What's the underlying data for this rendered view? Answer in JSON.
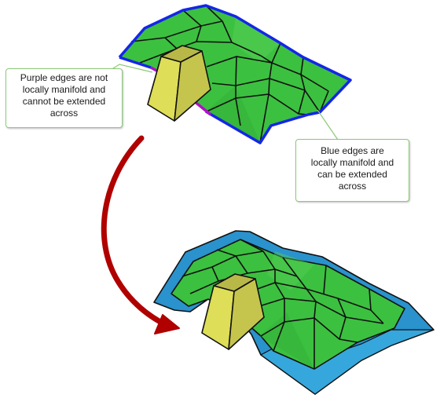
{
  "callouts": {
    "purple": {
      "lines": [
        "Purple edges are not",
        "locally manifold and",
        "cannot be extended",
        "across"
      ]
    },
    "blue": {
      "lines": [
        "Blue edges are",
        "locally manifold and",
        "can be extended",
        "across"
      ]
    }
  },
  "colors": {
    "surface_green": "#3cc040",
    "grid_line": "#111111",
    "manifold_edge_blue": "#1426e8",
    "nonmanifold_edge_purple": "#b010c8",
    "extension_blue": "#2a92cc",
    "block_yellow": "#d8d850",
    "arrow_red": "#b00000",
    "callout_border": "#8cc97a"
  }
}
